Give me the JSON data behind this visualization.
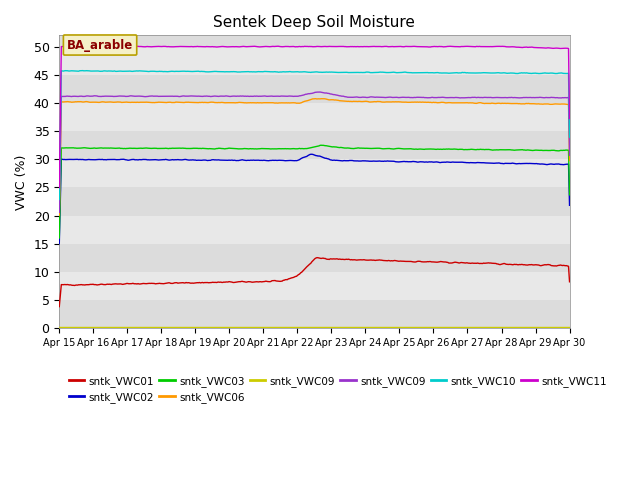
{
  "title": "Sentek Deep Soil Moisture",
  "ylabel": "VWC (%)",
  "annotation": "BA_arable",
  "ylim": [
    0,
    52
  ],
  "yticks": [
    0,
    5,
    10,
    15,
    20,
    25,
    30,
    35,
    40,
    45,
    50
  ],
  "x_labels": [
    "Apr 15",
    "Apr 16",
    "Apr 17",
    "Apr 18",
    "Apr 19",
    "Apr 20",
    "Apr 21",
    "Apr 22",
    "Apr 23",
    "Apr 24",
    "Apr 25",
    "Apr 26",
    "Apr 27",
    "Apr 28",
    "Apr 29",
    "Apr 30"
  ],
  "series": {
    "sntk_VWC01": {
      "color": "#cc0000"
    },
    "sntk_VWC02": {
      "color": "#0000cc"
    },
    "sntk_VWC03": {
      "color": "#00cc00"
    },
    "sntk_VWC06": {
      "color": "#ff9900"
    },
    "sntk_VWC09y": {
      "color": "#cccc00"
    },
    "sntk_VWC09p": {
      "color": "#9933cc"
    },
    "sntk_VWC10": {
      "color": "#00cccc"
    },
    "sntk_VWC11": {
      "color": "#cc00cc"
    }
  },
  "legend_entries": [
    {
      "label": "sntk_VWC01",
      "color": "#cc0000"
    },
    {
      "label": "sntk_VWC02",
      "color": "#0000cc"
    },
    {
      "label": "sntk_VWC03",
      "color": "#00cc00"
    },
    {
      "label": "sntk_VWC06",
      "color": "#ff9900"
    },
    {
      "label": "sntk_VWC09",
      "color": "#cccc00"
    },
    {
      "label": "sntk_VWC09",
      "color": "#9933cc"
    },
    {
      "label": "sntk_VWC10",
      "color": "#00cccc"
    },
    {
      "label": "sntk_VWC11",
      "color": "#cc00cc"
    }
  ],
  "band_colors": [
    "#dcdcdc",
    "#e8e8e8"
  ],
  "band_edges": [
    0,
    5,
    10,
    15,
    20,
    25,
    30,
    35,
    40,
    45,
    50,
    52
  ]
}
